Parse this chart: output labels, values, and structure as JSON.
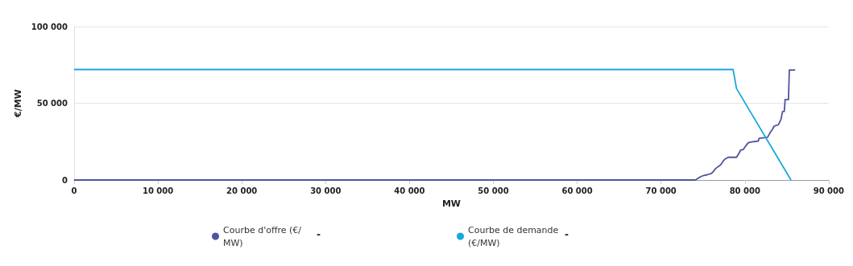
{
  "chart_data": {
    "type": "line",
    "xlabel": "MW",
    "ylabel": "€/MW",
    "xlim": [
      0,
      90000
    ],
    "xticks": [
      0,
      10000,
      20000,
      30000,
      40000,
      50000,
      60000,
      70000,
      80000,
      90000
    ],
    "ylim": [
      0,
      100000
    ],
    "yticks": [
      0,
      50000,
      100000
    ],
    "grid": "y",
    "legend": "bottom",
    "marker": "none",
    "line_style": "solid",
    "annotations": [
      "-",
      "-"
    ],
    "series": [
      {
        "name": "Courbe d'offre (€/MW)",
        "color": "#5153a0",
        "x": [
          0,
          74100,
          74400,
          74700,
          75100,
          75500,
          76000,
          76200,
          76500,
          76800,
          77100,
          77400,
          77600,
          78000,
          79000,
          79300,
          79500,
          79800,
          80100,
          80400,
          80800,
          81600,
          81700,
          82700,
          83000,
          83300,
          83500,
          84000,
          84300,
          84500,
          84700,
          84800,
          85200,
          85300,
          86000
        ],
        "values": [
          0,
          0,
          1000,
          2100,
          3000,
          3400,
          4200,
          5300,
          7400,
          8700,
          9800,
          12200,
          13500,
          14800,
          14800,
          17400,
          19500,
          19800,
          22200,
          24300,
          24800,
          25400,
          27200,
          27800,
          30700,
          33100,
          35200,
          36000,
          39500,
          44700,
          44700,
          52400,
          52400,
          71700,
          71700
        ]
      },
      {
        "name": "Courbe de demande (€/MW)",
        "color": "#1aa7dc",
        "x": [
          0,
          78600,
          79000,
          85500
        ],
        "values": [
          72000,
          72000,
          59600,
          0
        ]
      }
    ]
  }
}
